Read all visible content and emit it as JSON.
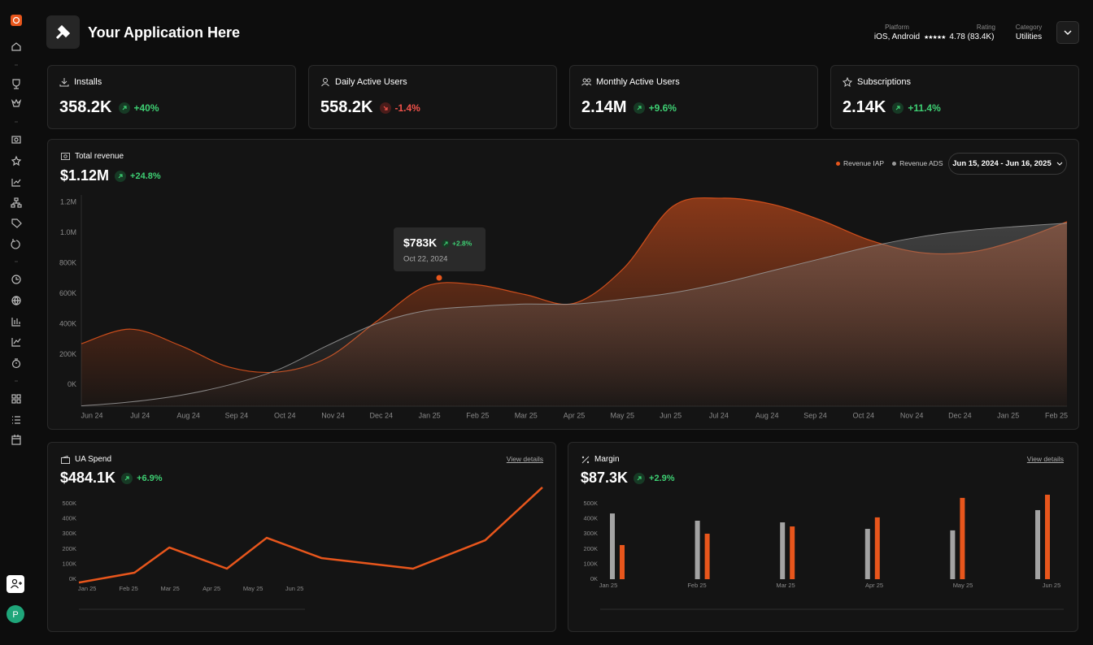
{
  "header": {
    "title": "Your Application Here",
    "platform_label": "Platform",
    "platform": "iOS, Android",
    "rating_label": "Rating",
    "rating": "4.78 (83.4K)",
    "category_label": "Category",
    "category": "Utilities"
  },
  "sidebar": {
    "avatar": "P"
  },
  "metrics": [
    {
      "label": "Installs",
      "value": "358.2K",
      "change": "+40%",
      "trend": "up"
    },
    {
      "label": "Daily Active Users",
      "value": "558.2K",
      "change": "-1.4%",
      "trend": "down"
    },
    {
      "label": "Monthly Active Users",
      "value": "2.14M",
      "change": "+9.6%",
      "trend": "up"
    },
    {
      "label": "Subscriptions",
      "value": "2.14K",
      "change": "+11.4%",
      "trend": "up"
    }
  ],
  "revenue": {
    "type": "area",
    "title": "Total revenue",
    "value": "$1.12M",
    "change": "+24.8%",
    "trend": "up",
    "date_range": "Jun 15, 2024 - Jun 16, 2025",
    "categories": [
      "Jun 24",
      "Jul 24",
      "Aug 24",
      "Sep 24",
      "Oct 24",
      "Nov 24",
      "Dec 24",
      "Jan 25",
      "Feb 25",
      "Mar 25",
      "Apr 25",
      "May 25",
      "Jun 25",
      "Jul 24",
      "Aug 24",
      "Sep 24",
      "Oct 24",
      "Nov 24",
      "Dec 24",
      "Jan 25",
      "Feb 25"
    ],
    "series": [
      {
        "name": "Revenue IAP",
        "color": "#e8561c",
        "values": [
          271000,
          367000,
          260000,
          117000,
          85000,
          180000,
          420000,
          650000,
          660000,
          595000,
          537000,
          766000,
          1175000,
          1229000,
          1190000,
          1085000,
          952000,
          872000,
          872000,
          952000,
          1074000
        ]
      },
      {
        "name": "Revenue ADS",
        "color": "#9a9a9a",
        "values": [
          -138000,
          -112000,
          -69000,
          0,
          101000,
          260000,
          404000,
          489000,
          516000,
          532000,
          532000,
          564000,
          606000,
          670000,
          750000,
          830000,
          910000,
          973000,
          1016000,
          1043000,
          1064000
        ]
      }
    ],
    "ylim": [
      -140000,
      1250000
    ],
    "yticks": [
      {
        "value": 0,
        "label": "0K"
      },
      {
        "value": 200000,
        "label": "200K"
      },
      {
        "value": 400000,
        "label": "400K"
      },
      {
        "value": 600000,
        "label": "600K"
      },
      {
        "value": 800000,
        "label": "800K"
      },
      {
        "value": 1000000,
        "label": "1.0M"
      },
      {
        "value": 1200000,
        "label": "1.2M"
      }
    ],
    "tooltip": {
      "value": "$783K",
      "change": "+2.8%",
      "trend": "up",
      "date": "Oct 22, 2024"
    }
  },
  "ua_spend": {
    "type": "line",
    "title": "UA Spend",
    "value": "$484.1K",
    "change": "+6.9%",
    "trend": "up",
    "link": "View details",
    "x": [
      -0.2,
      1.14,
      1.98,
      3.37,
      4.33,
      5.65,
      7.86,
      9.6,
      10.98
    ],
    "xlim": [
      -0.2,
      11
    ],
    "xticks": [
      {
        "value": 0,
        "label": "Jan 25"
      },
      {
        "value": 1,
        "label": "Feb 25"
      },
      {
        "value": 2,
        "label": "Mar 25"
      },
      {
        "value": 3,
        "label": "Apr 25"
      },
      {
        "value": 4,
        "label": "May 25"
      },
      {
        "value": 5,
        "label": "Jun 25"
      }
    ],
    "series": [
      {
        "color": "#e8561c",
        "values": [
          -22000,
          43000,
          210000,
          70000,
          274000,
          140000,
          70000,
          258000,
          608000
        ]
      }
    ],
    "ylim": [
      -30000,
      620000
    ],
    "yticks": [
      {
        "value": 0,
        "label": "0K"
      },
      {
        "value": 100000,
        "label": "100K"
      },
      {
        "value": 200000,
        "label": "200K"
      },
      {
        "value": 300000,
        "label": "300K"
      },
      {
        "value": 400000,
        "label": "400K"
      },
      {
        "value": 500000,
        "label": "500K"
      }
    ]
  },
  "margin": {
    "type": "bar",
    "title": "Margin",
    "value": "$87.3K",
    "change": "+2.9%",
    "trend": "up",
    "link": "View details",
    "categories": [
      "Jan 25",
      "Feb 25",
      "Mar 25",
      "Apr 25",
      "May 25",
      "Jun 25"
    ],
    "series": [
      {
        "color": "#a3a3a3",
        "values": [
          435000,
          387000,
          376000,
          333000,
          323000,
          457000
        ]
      },
      {
        "color": "#e8561c",
        "values": [
          226000,
          301000,
          349000,
          409000,
          538000,
          559000
        ]
      }
    ],
    "ylim": [
      0,
      560000
    ],
    "yticks": [
      {
        "value": 0,
        "label": "0K"
      },
      {
        "value": 100000,
        "label": "100K"
      },
      {
        "value": 200000,
        "label": "200K"
      },
      {
        "value": 300000,
        "label": "300K"
      },
      {
        "value": 400000,
        "label": "400K"
      },
      {
        "value": 500000,
        "label": "500K"
      }
    ]
  }
}
